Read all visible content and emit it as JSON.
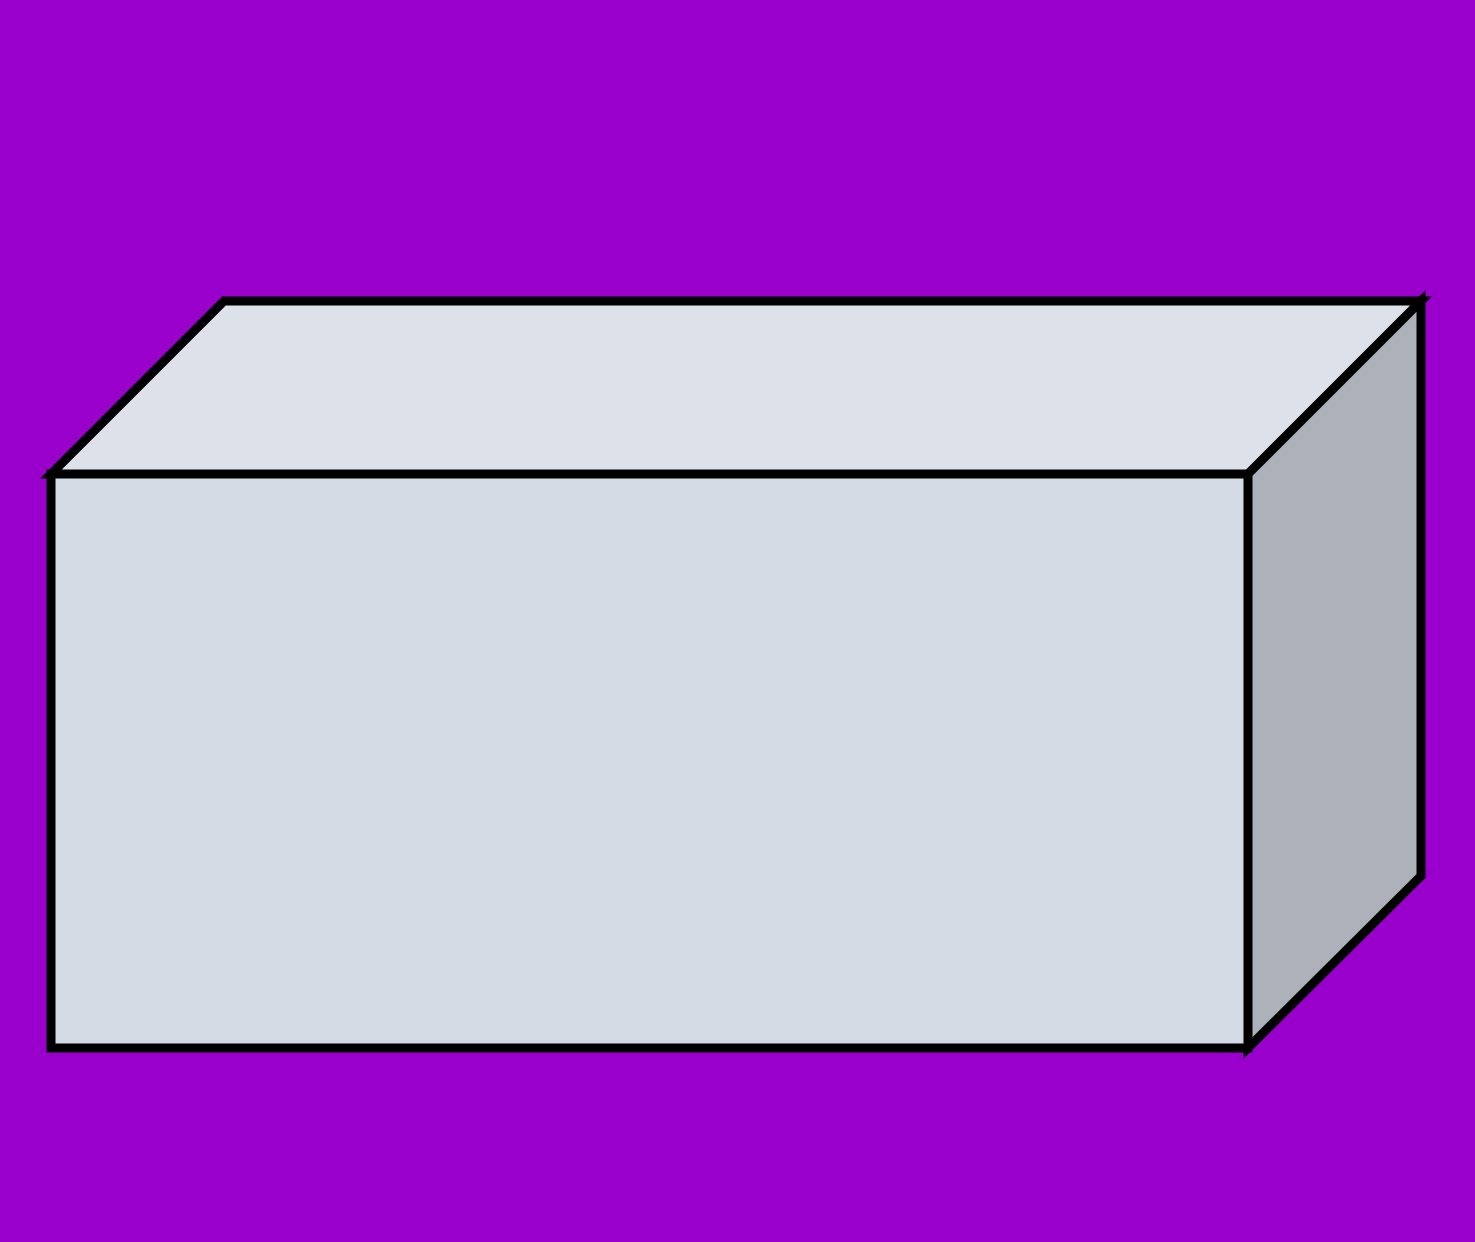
{
  "diagram": {
    "shape": "rectangular-prism",
    "colors": {
      "background": "#9900CC",
      "front_face": "#D4DBE5",
      "top_face": "#DDE2EA",
      "side_face": "#ADB1B9",
      "edge": "#000000"
    }
  }
}
